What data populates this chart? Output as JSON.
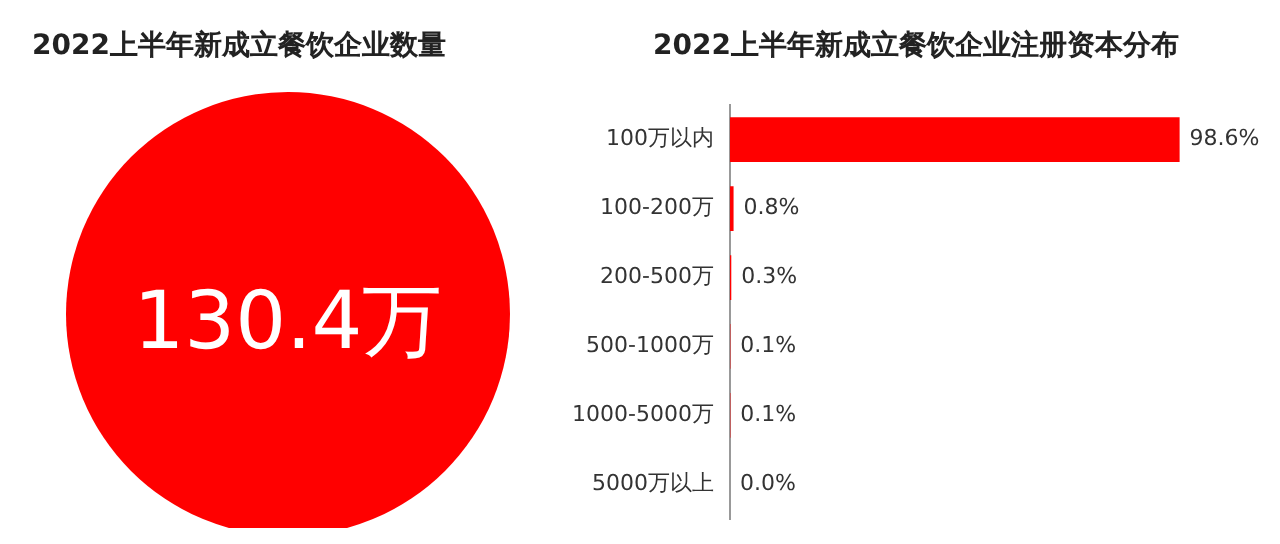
{
  "chart_data": [
    {
      "type": "other",
      "title": "2022上半年新成立餐饮企业数量",
      "annotations": [
        "130.4万"
      ],
      "color": "#ff0000"
    },
    {
      "type": "bar",
      "title": "2022上半年新成立餐饮企业注册资本分布",
      "orientation": "horizontal",
      "categories": [
        "100万以内",
        "100-200万",
        "200-500万",
        "500-1000万",
        "1000-5000万",
        "5000万以上"
      ],
      "values": [
        98.6,
        0.8,
        0.3,
        0.1,
        0.1,
        0.0
      ],
      "color": "#ff0000",
      "value_labels": [
        "98.6%",
        "0.8%",
        "0.3%",
        "0.1%",
        "0.1%",
        "0.0%"
      ],
      "tick_labels": "y",
      "grid": false,
      "legend": false
    }
  ]
}
